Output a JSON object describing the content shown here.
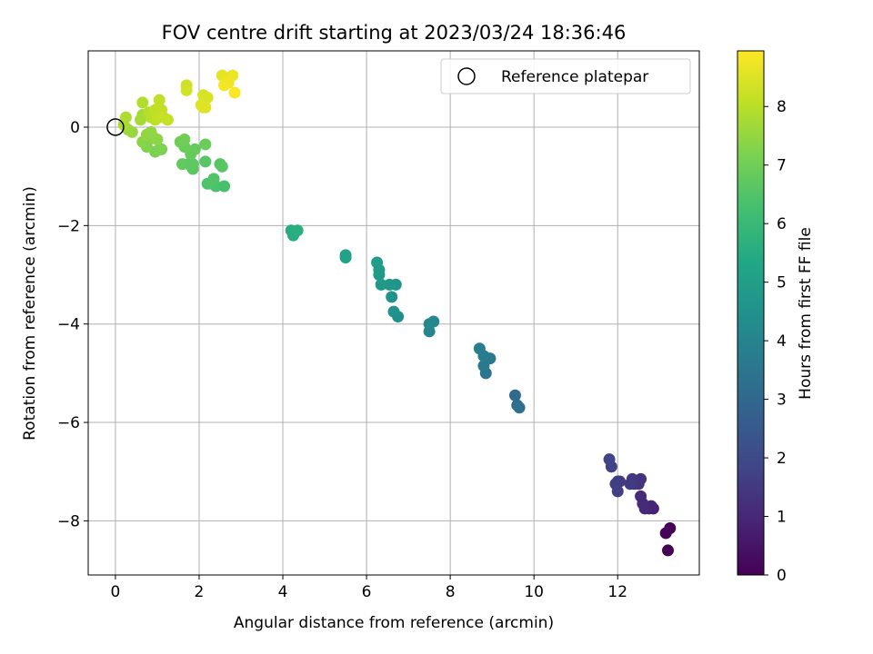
{
  "chart_data": {
    "type": "scatter",
    "title": "FOV centre drift starting at 2023/03/24 18:36:46",
    "xlabel": "Angular distance from reference (arcmin)",
    "ylabel": "Rotation from reference (arcmin)",
    "xlim": [
      -0.65,
      13.95
    ],
    "ylim": [
      -9.1,
      1.55
    ],
    "xticks": [
      0,
      2,
      4,
      6,
      8,
      10,
      12
    ],
    "yticks": [
      0,
      -2,
      -4,
      -6,
      -8
    ],
    "grid": true,
    "legend": {
      "position": "top-right",
      "entries": [
        "Reference platepar"
      ]
    },
    "reference_point": {
      "x": 0,
      "y": 0,
      "name": "Reference platepar"
    },
    "colorbar": {
      "label": "Hours from first FF file",
      "colormap": "viridis",
      "range": [
        0,
        8.95
      ],
      "ticks": [
        0,
        1,
        2,
        3,
        4,
        5,
        6,
        7,
        8
      ]
    },
    "series": [
      {
        "points": [
          {
            "x": 13.25,
            "y": -8.15,
            "c": 0.05
          },
          {
            "x": 13.15,
            "y": -8.25,
            "c": 0.1
          },
          {
            "x": 13.2,
            "y": -8.6,
            "c": 0.0
          },
          {
            "x": 12.85,
            "y": -7.75,
            "c": 0.8
          },
          {
            "x": 12.75,
            "y": -7.75,
            "c": 0.9
          },
          {
            "x": 12.8,
            "y": -7.7,
            "c": 0.95
          },
          {
            "x": 12.65,
            "y": -7.75,
            "c": 1.0
          },
          {
            "x": 12.6,
            "y": -7.65,
            "c": 1.05
          },
          {
            "x": 12.55,
            "y": -7.5,
            "c": 1.1
          },
          {
            "x": 12.55,
            "y": -7.15,
            "c": 1.3
          },
          {
            "x": 12.5,
            "y": -7.25,
            "c": 1.35
          },
          {
            "x": 12.4,
            "y": -7.25,
            "c": 1.4
          },
          {
            "x": 12.35,
            "y": -7.15,
            "c": 1.45
          },
          {
            "x": 12.3,
            "y": -7.25,
            "c": 1.5
          },
          {
            "x": 12.05,
            "y": -7.2,
            "c": 1.55
          },
          {
            "x": 12.0,
            "y": -7.2,
            "c": 1.6
          },
          {
            "x": 11.95,
            "y": -7.25,
            "c": 1.6
          },
          {
            "x": 12.0,
            "y": -7.4,
            "c": 1.65
          },
          {
            "x": 11.85,
            "y": -6.9,
            "c": 1.75
          },
          {
            "x": 11.8,
            "y": -6.75,
            "c": 1.8
          },
          {
            "x": 9.55,
            "y": -5.45,
            "c": 3.1
          },
          {
            "x": 9.6,
            "y": -5.65,
            "c": 3.2
          },
          {
            "x": 9.65,
            "y": -5.7,
            "c": 3.25
          },
          {
            "x": 8.85,
            "y": -5.0,
            "c": 3.5
          },
          {
            "x": 8.8,
            "y": -4.85,
            "c": 3.6
          },
          {
            "x": 8.95,
            "y": -4.7,
            "c": 3.65
          },
          {
            "x": 8.8,
            "y": -4.65,
            "c": 3.7
          },
          {
            "x": 8.7,
            "y": -4.5,
            "c": 3.75
          },
          {
            "x": 7.5,
            "y": -4.15,
            "c": 4.1
          },
          {
            "x": 7.5,
            "y": -4.0,
            "c": 4.15
          },
          {
            "x": 7.6,
            "y": -3.95,
            "c": 4.2
          },
          {
            "x": 6.75,
            "y": -3.85,
            "c": 4.45
          },
          {
            "x": 6.65,
            "y": -3.75,
            "c": 4.5
          },
          {
            "x": 6.6,
            "y": -3.45,
            "c": 4.55
          },
          {
            "x": 6.7,
            "y": -3.2,
            "c": 4.65
          },
          {
            "x": 6.55,
            "y": -3.2,
            "c": 4.7
          },
          {
            "x": 6.35,
            "y": -3.2,
            "c": 4.75
          },
          {
            "x": 6.3,
            "y": -3.0,
            "c": 4.8
          },
          {
            "x": 6.3,
            "y": -2.9,
            "c": 4.85
          },
          {
            "x": 6.25,
            "y": -2.75,
            "c": 4.9
          },
          {
            "x": 5.5,
            "y": -2.65,
            "c": 5.1
          },
          {
            "x": 5.5,
            "y": -2.6,
            "c": 5.15
          },
          {
            "x": 4.25,
            "y": -2.2,
            "c": 5.5
          },
          {
            "x": 4.2,
            "y": -2.1,
            "c": 5.55
          },
          {
            "x": 4.35,
            "y": -2.1,
            "c": 5.6
          },
          {
            "x": 2.6,
            "y": -1.2,
            "c": 6.3
          },
          {
            "x": 2.4,
            "y": -1.2,
            "c": 6.35
          },
          {
            "x": 2.3,
            "y": -1.15,
            "c": 6.4
          },
          {
            "x": 2.2,
            "y": -1.15,
            "c": 6.45
          },
          {
            "x": 2.35,
            "y": -1.05,
            "c": 6.5
          },
          {
            "x": 2.5,
            "y": -0.75,
            "c": 6.55
          },
          {
            "x": 2.55,
            "y": -0.8,
            "c": 6.6
          },
          {
            "x": 2.15,
            "y": -0.7,
            "c": 6.6
          },
          {
            "x": 1.85,
            "y": -0.85,
            "c": 6.65
          },
          {
            "x": 1.85,
            "y": -0.75,
            "c": 6.7
          },
          {
            "x": 1.75,
            "y": -0.75,
            "c": 6.7
          },
          {
            "x": 1.6,
            "y": -0.75,
            "c": 6.75
          },
          {
            "x": 1.9,
            "y": -0.45,
            "c": 6.8
          },
          {
            "x": 1.8,
            "y": -0.55,
            "c": 6.85
          },
          {
            "x": 1.65,
            "y": -0.4,
            "c": 6.9
          },
          {
            "x": 2.15,
            "y": -0.35,
            "c": 6.9
          },
          {
            "x": 1.55,
            "y": -0.3,
            "c": 6.95
          },
          {
            "x": 1.65,
            "y": -0.25,
            "c": 7.0
          },
          {
            "x": 1.1,
            "y": -0.45,
            "c": 7.1
          },
          {
            "x": 0.95,
            "y": -0.5,
            "c": 7.15
          },
          {
            "x": 1.05,
            "y": -0.45,
            "c": 7.2
          },
          {
            "x": 0.75,
            "y": -0.4,
            "c": 7.25
          },
          {
            "x": 0.8,
            "y": -0.25,
            "c": 7.3
          },
          {
            "x": 0.65,
            "y": -0.3,
            "c": 7.35
          },
          {
            "x": 0.9,
            "y": -0.2,
            "c": 7.35
          },
          {
            "x": 1.0,
            "y": -0.25,
            "c": 7.4
          },
          {
            "x": 0.85,
            "y": -0.1,
            "c": 7.45
          },
          {
            "x": 0.75,
            "y": -0.15,
            "c": 7.5
          },
          {
            "x": 0.4,
            "y": -0.1,
            "c": 7.55
          },
          {
            "x": 0.3,
            "y": -0.05,
            "c": 7.6
          },
          {
            "x": 0.65,
            "y": 0.25,
            "c": 7.7
          },
          {
            "x": 0.6,
            "y": 0.15,
            "c": 7.75
          },
          {
            "x": 0.2,
            "y": 0.05,
            "c": 7.8
          },
          {
            "x": 0.25,
            "y": 0.2,
            "c": 7.85
          },
          {
            "x": 0.65,
            "y": 0.5,
            "c": 7.9
          },
          {
            "x": 0.8,
            "y": 0.3,
            "c": 7.95
          },
          {
            "x": 0.85,
            "y": 0.2,
            "c": 8.0
          },
          {
            "x": 0.95,
            "y": 0.15,
            "c": 8.05
          },
          {
            "x": 0.95,
            "y": 0.35,
            "c": 8.05
          },
          {
            "x": 1.05,
            "y": 0.55,
            "c": 8.1
          },
          {
            "x": 1.1,
            "y": 0.35,
            "c": 8.1
          },
          {
            "x": 1.05,
            "y": 0.2,
            "c": 8.15
          },
          {
            "x": 1.25,
            "y": 0.15,
            "c": 8.15
          },
          {
            "x": 1.15,
            "y": 0.2,
            "c": 8.2
          },
          {
            "x": 1.7,
            "y": 0.85,
            "c": 8.3
          },
          {
            "x": 1.7,
            "y": 0.75,
            "c": 8.35
          },
          {
            "x": 2.1,
            "y": 0.65,
            "c": 8.4
          },
          {
            "x": 2.2,
            "y": 0.6,
            "c": 8.45
          },
          {
            "x": 2.05,
            "y": 0.45,
            "c": 8.5
          },
          {
            "x": 2.1,
            "y": 0.4,
            "c": 8.55
          },
          {
            "x": 2.15,
            "y": 0.4,
            "c": 8.55
          },
          {
            "x": 2.55,
            "y": 1.05,
            "c": 8.6
          },
          {
            "x": 2.65,
            "y": 1.0,
            "c": 8.65
          },
          {
            "x": 2.8,
            "y": 1.05,
            "c": 8.7
          },
          {
            "x": 2.7,
            "y": 0.9,
            "c": 8.75
          },
          {
            "x": 2.6,
            "y": 0.85,
            "c": 8.8
          },
          {
            "x": 2.85,
            "y": 0.7,
            "c": 8.9
          }
        ]
      }
    ]
  }
}
